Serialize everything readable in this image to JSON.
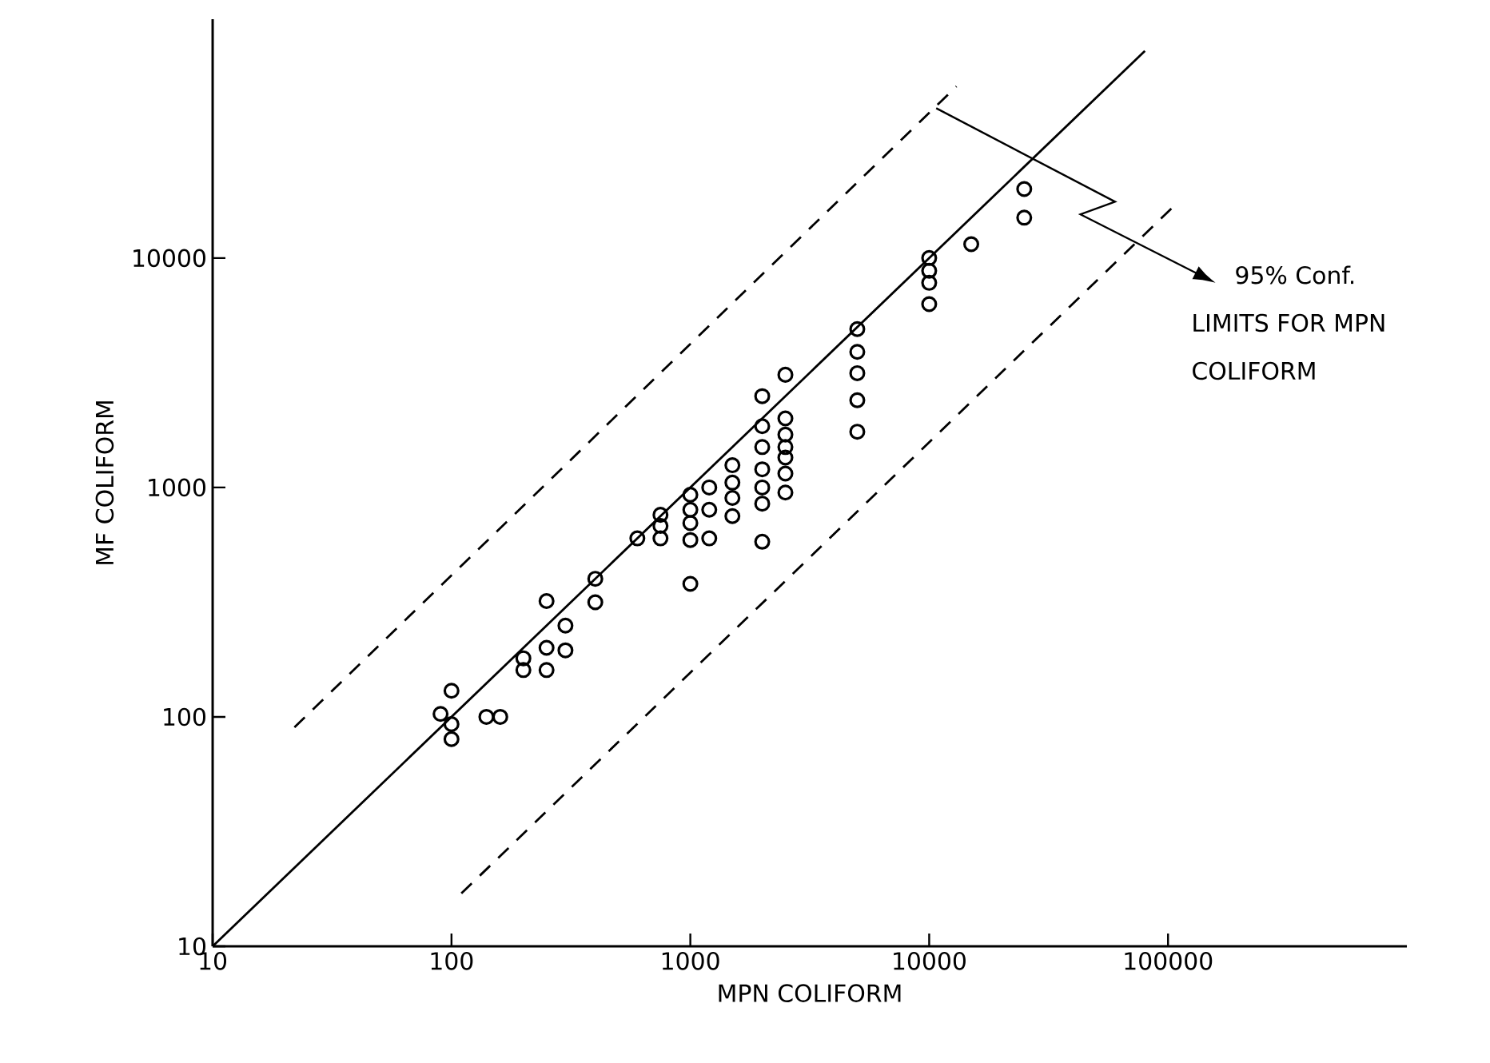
{
  "chart_data": {
    "type": "scatter",
    "xlabel": "MPN COLIFORM",
    "ylabel": "MF COLIFORM",
    "log": "xy",
    "xlim": [
      10,
      1000000
    ],
    "ylim": [
      10,
      110000
    ],
    "xticks": [
      10,
      100,
      1000,
      10000,
      100000
    ],
    "yticks": [
      10,
      100,
      1000,
      10000
    ],
    "grid": false,
    "annotations": [
      "95% Conf.",
      "LIMITS FOR MPN",
      "COLIFORM"
    ],
    "series": [
      {
        "color": "#000000",
        "marker": "circle",
        "x": [
          90,
          100,
          100,
          100,
          140,
          160,
          200,
          200,
          250,
          250,
          250,
          300,
          300,
          400,
          400,
          600,
          750,
          750,
          750,
          1000,
          1000,
          1000,
          1000,
          1000,
          1200,
          1200,
          1200,
          1500,
          1500,
          1500,
          1500,
          2000,
          2000,
          2000,
          2000,
          2000,
          2000,
          2000,
          2500,
          2500,
          2500,
          2500,
          2500,
          2500,
          2500,
          5000,
          5000,
          5000,
          5000,
          5000,
          10000,
          10000,
          10000,
          10000,
          15000,
          25000,
          25000
        ],
        "values": [
          103,
          130,
          93,
          80,
          100,
          100,
          180,
          160,
          320,
          200,
          160,
          250,
          195,
          400,
          316,
          600,
          760,
          680,
          600,
          930,
          800,
          700,
          590,
          380,
          1000,
          800,
          600,
          1250,
          1050,
          900,
          750,
          2500,
          1850,
          1500,
          1000,
          850,
          580,
          1200,
          3100,
          2000,
          1700,
          1500,
          1350,
          1150,
          950,
          4900,
          3900,
          3150,
          2400,
          1750,
          10000,
          8800,
          7800,
          6300,
          11500,
          20000,
          15000
        ]
      },
      {
        "type": "line",
        "color": "#000000",
        "line_style": "solid",
        "x": [
          10,
          80000
        ],
        "values": [
          10,
          80000
        ]
      },
      {
        "type": "line",
        "color": "#000000",
        "line_style": "dashed",
        "x": [
          22,
          13000
        ],
        "values": [
          90,
          56000
        ]
      },
      {
        "type": "line",
        "color": "#000000",
        "line_style": "dashed",
        "x": [
          110,
          110000
        ],
        "values": [
          17,
          17500
        ]
      }
    ]
  }
}
